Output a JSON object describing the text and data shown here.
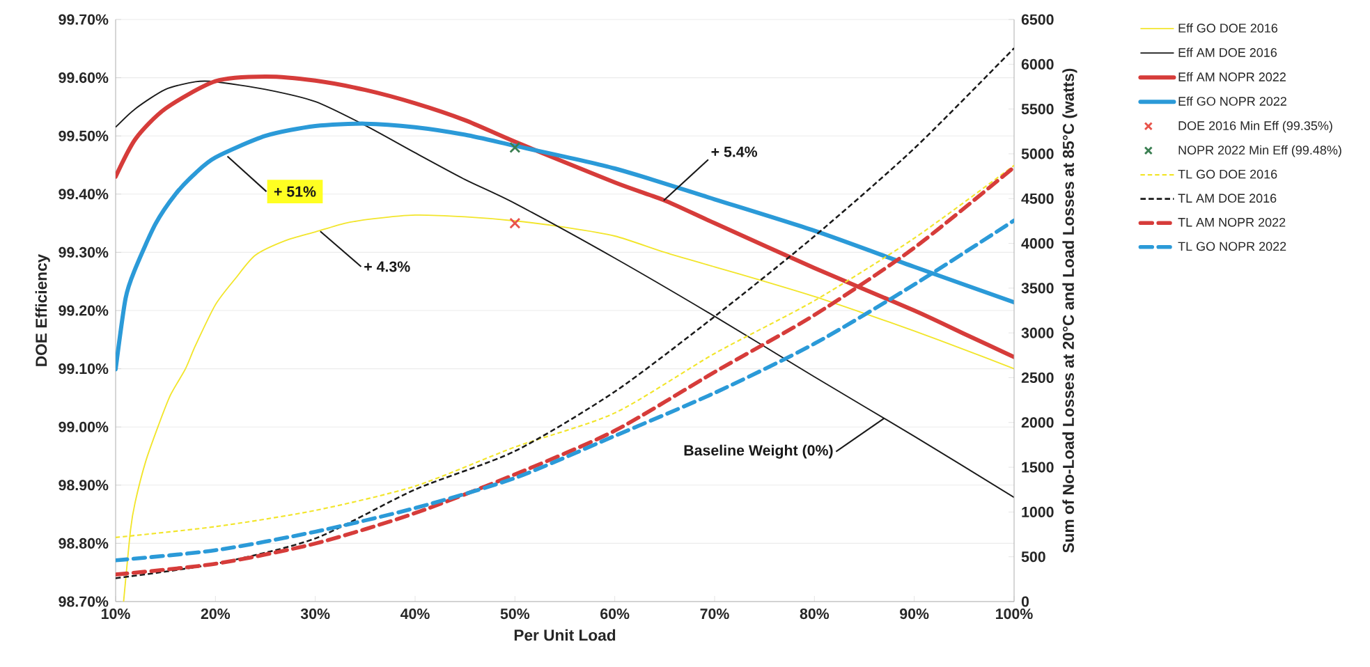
{
  "chart_data": {
    "type": "line",
    "xlabel": "Per Unit Load",
    "ylabel": "DOE Efficiency",
    "y2label": "Sum of No-Load Losses at 20°C and Load Losses at 85°C (watts)",
    "xlim": [
      10,
      100
    ],
    "xticks": [
      {
        "value": 10,
        "label": "10%"
      },
      {
        "value": 20,
        "label": "20%"
      },
      {
        "value": 30,
        "label": "30%"
      },
      {
        "value": 40,
        "label": "40%"
      },
      {
        "value": 50,
        "label": "50%"
      },
      {
        "value": 60,
        "label": "60%"
      },
      {
        "value": 70,
        "label": "70%"
      },
      {
        "value": 80,
        "label": "80%"
      },
      {
        "value": 90,
        "label": "90%"
      },
      {
        "value": 100,
        "label": "100%"
      }
    ],
    "ylim": [
      98.7,
      99.7
    ],
    "yticks": [
      {
        "value": 98.7,
        "label": "98.70%"
      },
      {
        "value": 98.8,
        "label": "98.80%"
      },
      {
        "value": 98.9,
        "label": "98.90%"
      },
      {
        "value": 99.0,
        "label": "99.00%"
      },
      {
        "value": 99.1,
        "label": "99.10%"
      },
      {
        "value": 99.2,
        "label": "99.20%"
      },
      {
        "value": 99.3,
        "label": "99.30%"
      },
      {
        "value": 99.4,
        "label": "99.40%"
      },
      {
        "value": 99.5,
        "label": "99.50%"
      },
      {
        "value": 99.6,
        "label": "99.60%"
      },
      {
        "value": 99.7,
        "label": "99.70%"
      }
    ],
    "y2lim": [
      0,
      6500
    ],
    "y2ticks": [
      0,
      500,
      1000,
      1500,
      2000,
      2500,
      3000,
      3500,
      4000,
      4500,
      5000,
      5500,
      6000,
      6500
    ],
    "grid": "y",
    "legend": "right",
    "series": [
      {
        "name": "Eff GO DOE 2016",
        "color": "#f2e52b",
        "line_style": "solid",
        "x": [
          10.8,
          11.5,
          11.95,
          13,
          14.3,
          15.5,
          17,
          18,
          20,
          22,
          24,
          27,
          30,
          33,
          36,
          40,
          45,
          50,
          55,
          60,
          65,
          70,
          75,
          80,
          85,
          90,
          95,
          100
        ],
        "values": [
          98.7,
          98.824,
          98.87,
          98.94,
          99.003,
          99.055,
          99.1,
          99.14,
          99.21,
          99.255,
          99.295,
          99.32,
          99.335,
          99.35,
          99.358,
          99.364,
          99.361,
          99.354,
          99.343,
          99.328,
          99.3,
          99.275,
          99.25,
          99.224,
          99.195,
          99.165,
          99.133,
          99.1
        ]
      },
      {
        "name": "Eff AM DOE 2016",
        "color": "#1a1a1a",
        "line_style": "solid",
        "x": [
          10,
          12,
          15,
          18,
          20,
          25,
          30,
          35,
          40,
          45,
          50,
          60,
          70,
          80,
          90,
          100
        ],
        "values": [
          99.515,
          99.547,
          99.58,
          99.593,
          99.593,
          99.58,
          99.559,
          99.518,
          99.471,
          99.425,
          99.384,
          99.29,
          99.19,
          99.086,
          98.984,
          98.879
        ]
      },
      {
        "name": "Eff AM NOPR 2022",
        "color": "#d63c3a",
        "line_style": "solid",
        "x": [
          10,
          12,
          15,
          20,
          25,
          30,
          35,
          40,
          45,
          50,
          60,
          65,
          70,
          80,
          90,
          95,
          100
        ],
        "values": [
          99.43,
          99.495,
          99.547,
          99.594,
          99.602,
          99.595,
          99.579,
          99.556,
          99.527,
          99.49,
          99.42,
          99.389,
          99.35,
          99.273,
          99.2,
          99.16,
          99.12
        ]
      },
      {
        "name": "Eff GO NOPR 2022",
        "color": "#2b9ad8",
        "line_style": "solid",
        "x": [
          10,
          11,
          12,
          14,
          16,
          18,
          20,
          25,
          30,
          35,
          40,
          45,
          50,
          60,
          70,
          80,
          90,
          100
        ],
        "values": [
          99.099,
          99.221,
          99.273,
          99.349,
          99.4,
          99.436,
          99.463,
          99.5,
          99.517,
          99.521,
          99.515,
          99.502,
          99.483,
          99.444,
          99.391,
          99.337,
          99.275,
          99.214
        ]
      },
      {
        "name": "DOE 2016 Min Eff (99.35%)",
        "type": "scatter",
        "marker": "cross",
        "color": "#e8534a",
        "x": [
          50
        ],
        "values": [
          99.35
        ]
      },
      {
        "name": "NOPR 2022 Min Eff (99.48%)",
        "type": "scatter",
        "marker": "cross",
        "color": "#3b7f52",
        "x": [
          50
        ],
        "values": [
          99.48
        ]
      },
      {
        "name": "TL GO DOE 2016",
        "color": "#f2e52b",
        "line_style": "dashed",
        "axis": "y2",
        "x": [
          10,
          20,
          30,
          40,
          50,
          60,
          70,
          80,
          90,
          100
        ],
        "values": [
          716,
          837,
          1018,
          1289,
          1725,
          2106,
          2770,
          3360,
          4058,
          4871
        ]
      },
      {
        "name": "TL AM DOE 2016",
        "color": "#1a1a1a",
        "line_style": "dashed",
        "axis": "y2",
        "x": [
          10,
          20,
          30,
          40,
          50,
          60,
          70,
          80,
          90,
          100
        ],
        "values": [
          260,
          422,
          705,
          1251,
          1680,
          2344,
          3183,
          4080,
          5060,
          6180
        ]
      },
      {
        "name": "TL AM NOPR 2022",
        "color": "#d63c3a",
        "line_style": "dashed",
        "axis": "y2",
        "x": [
          10,
          20,
          30,
          40,
          50,
          60,
          70,
          80,
          90,
          100
        ],
        "values": [
          302,
          422,
          648,
          988,
          1420,
          1908,
          2563,
          3200,
          3950,
          4851
        ]
      },
      {
        "name": "TL GO NOPR 2022",
        "color": "#2b9ad8",
        "line_style": "dashed",
        "axis": "y2",
        "x": [
          10,
          20,
          30,
          40,
          50,
          60,
          70,
          80,
          90,
          100
        ],
        "values": [
          460,
          573,
          780,
          1044,
          1380,
          1850,
          2330,
          2880,
          3540,
          4256
        ]
      }
    ],
    "annotations": [
      {
        "text": "+ 51%",
        "x": 21.2,
        "y": 99.465
      },
      {
        "text": "+ 4.3%",
        "x": 30.5,
        "y": 99.336
      },
      {
        "text": "+ 5.4%",
        "x": 64.9,
        "y": 99.389
      },
      {
        "text": "Baseline Weight (0%)",
        "x": 87,
        "y": 99.015
      }
    ]
  }
}
